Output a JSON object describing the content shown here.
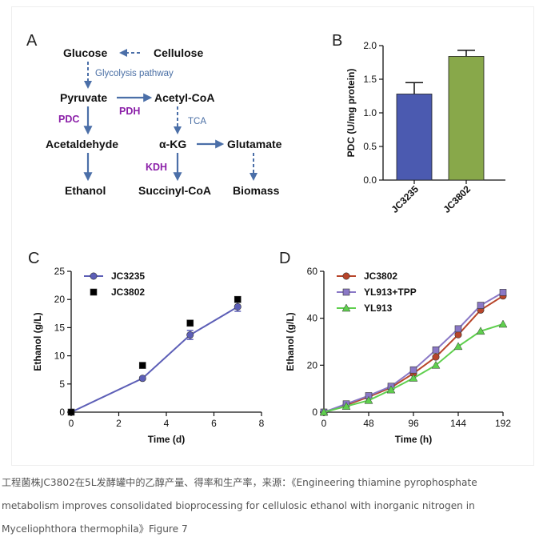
{
  "colors": {
    "arrow": "#4b6fa8",
    "enzyme": "#8B1FA8",
    "jc3235": "#5d5fb7",
    "jc3802_c": "#9a7628",
    "jc3802_d": "#b8452a",
    "yl913_tpp": "#8a78c6",
    "yl913": "#5fcf4e",
    "bar_jc3235": "#4b5ab0",
    "bar_jc3802": "#88a84a"
  },
  "panel_a": {
    "label": "A",
    "nodes": {
      "glucose": "Glucose",
      "cellulose": "Cellulose",
      "pyruvate": "Pyruvate",
      "acetyl_coa": "Acetyl-CoA",
      "acetaldehyde": "Acetaldehyde",
      "akg": "α-KG",
      "glutamate": "Glutamate",
      "ethanol": "Ethanol",
      "succinyl_coa": "Succinyl-CoA",
      "biomass": "Biomass"
    },
    "enzymes": {
      "pdc": "PDC",
      "pdh": "PDH",
      "kdh": "KDH"
    },
    "pathways": {
      "glycolysis": "Glycolysis pathway",
      "tca": "TCA"
    }
  },
  "chart_data": [
    {
      "panel": "B",
      "type": "bar",
      "categories": [
        "JC3235",
        "JC3802"
      ],
      "values": [
        1.28,
        1.84
      ],
      "errors": [
        0.17,
        0.09
      ],
      "ylabel": "PDC (U/mg protein)",
      "ylim": [
        0,
        2.0
      ],
      "yticks": [
        "0.0",
        "0.5",
        "1.0",
        "1.5",
        "2.0"
      ],
      "grid": false
    },
    {
      "panel": "C",
      "type": "line",
      "xlabel": "Time (d)",
      "ylabel": "Ethanol (g/L)",
      "xlim": [
        0,
        8
      ],
      "ylim": [
        0,
        25
      ],
      "xticks": [
        "0",
        "2",
        "4",
        "6",
        "8"
      ],
      "yticks": [
        "0",
        "5",
        "10",
        "15",
        "20",
        "25"
      ],
      "legend": "top-left",
      "series": [
        {
          "name": "JC3235",
          "marker": "circle",
          "x": [
            0,
            3,
            5,
            7
          ],
          "y": [
            0,
            6.0,
            13.7,
            18.7
          ],
          "err": [
            0,
            0.2,
            0.8,
            0.8
          ]
        },
        {
          "name": "JC3802",
          "marker": "square",
          "x": [
            0,
            3,
            5,
            7
          ],
          "y": [
            0,
            8.3,
            15.8,
            20.0
          ],
          "err": [
            0,
            0.2,
            0.3,
            0.3
          ]
        }
      ]
    },
    {
      "panel": "D",
      "type": "line",
      "xlabel": "Time (h)",
      "ylabel": "Ethanol (g/L)",
      "xlim": [
        0,
        192
      ],
      "ylim": [
        0,
        60
      ],
      "xticks": [
        "0",
        "48",
        "96",
        "144",
        "192"
      ],
      "yticks": [
        "0",
        "20",
        "40",
        "60"
      ],
      "legend": "top-left",
      "series": [
        {
          "name": "JC3802",
          "marker": "circle",
          "x": [
            0,
            24,
            48,
            72,
            96,
            120,
            144,
            168,
            192
          ],
          "y": [
            0,
            3.0,
            6.5,
            10.5,
            16.5,
            23.5,
            33.0,
            43.5,
            49.5
          ]
        },
        {
          "name": "YL913+TPP",
          "marker": "square",
          "x": [
            0,
            24,
            48,
            72,
            96,
            120,
            144,
            168,
            192
          ],
          "y": [
            0,
            3.5,
            7.0,
            11.0,
            18.0,
            26.5,
            35.5,
            45.5,
            51.0
          ]
        },
        {
          "name": "YL913",
          "marker": "triangle",
          "x": [
            0,
            24,
            48,
            72,
            96,
            120,
            144,
            168,
            192
          ],
          "y": [
            0,
            2.5,
            5.0,
            9.5,
            14.5,
            20.0,
            28.0,
            34.5,
            37.5
          ]
        }
      ]
    }
  ],
  "caption": {
    "line1": "工程菌株JC3802在5L发酵罐中的乙醇产量、得率和生产率，来源：《Engineering thiamine pyrophosphate",
    "line2": "metabolism improves consolidated bioprocessing for cellulosic ethanol with inorganic nitrogen in",
    "line3": "Myceliophthora thermophila》Figure 7"
  }
}
